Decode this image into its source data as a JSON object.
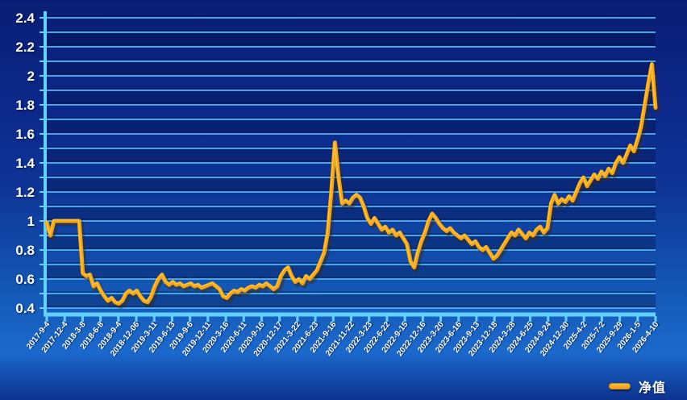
{
  "chart_data": {
    "type": "line",
    "title": "",
    "legend": {
      "label": "净值",
      "position": "bottom-right",
      "swatch_color": "#f2a617"
    },
    "ylim": [
      0.4,
      2.4
    ],
    "y_major_step": 0.2,
    "y_minor_step": 0.1,
    "grid": "on",
    "y_tick_labels": [
      "2.4",
      "2.2",
      "2",
      "1.8",
      "1.6",
      "1.4",
      "1.2",
      "1",
      "0.8",
      "0.6",
      "0.4"
    ],
    "y_tick_values": [
      2.4,
      2.2,
      2.0,
      1.8,
      1.6,
      1.4,
      1.2,
      1.0,
      0.8,
      0.6,
      0.4
    ],
    "x_tick_labels": [
      "2017-9-4",
      "2017-12-4",
      "2018-3-8",
      "2018-6-8",
      "2018-9-4",
      "2018-12-06",
      "2019-3-11",
      "2019-6-13",
      "2019-9-6",
      "2019-12-11",
      "2020-3-16",
      "2020-6-11",
      "2020-9-16",
      "2020-12-17",
      "2021-3-22",
      "2021-6-23",
      "2021-9-16",
      "2021-11-22",
      "2022-3-23",
      "2022-6-22",
      "2022-9-15",
      "2022-12-16",
      "2023-3-20",
      "2023-6-16",
      "2023-9-13",
      "2023-12-18",
      "2024-3-28",
      "2024-6-25",
      "2024-9-24",
      "2024-12-30",
      "2025-4-2",
      "2025-7-2",
      "2025-9-29",
      "2026-1-5",
      "2026-4-10"
    ],
    "series": [
      {
        "name": "净值",
        "color": "#f2a617",
        "x_span": [
          "2017-9-4",
          "2026-4-10"
        ],
        "values": [
          0.99,
          0.9,
          1.0,
          1.0,
          1.0,
          1.0,
          1.0,
          1.0,
          1.0,
          1.0,
          0.64,
          0.62,
          0.63,
          0.55,
          0.57,
          0.52,
          0.48,
          0.45,
          0.47,
          0.44,
          0.43,
          0.45,
          0.5,
          0.52,
          0.5,
          0.52,
          0.48,
          0.45,
          0.44,
          0.48,
          0.55,
          0.6,
          0.63,
          0.58,
          0.56,
          0.58,
          0.56,
          0.57,
          0.55,
          0.56,
          0.57,
          0.55,
          0.56,
          0.54,
          0.55,
          0.56,
          0.57,
          0.55,
          0.53,
          0.48,
          0.47,
          0.5,
          0.52,
          0.51,
          0.53,
          0.52,
          0.54,
          0.55,
          0.54,
          0.56,
          0.55,
          0.57,
          0.55,
          0.53,
          0.55,
          0.62,
          0.66,
          0.68,
          0.62,
          0.58,
          0.6,
          0.57,
          0.62,
          0.6,
          0.63,
          0.66,
          0.72,
          0.78,
          0.92,
          1.2,
          1.54,
          1.3,
          1.12,
          1.14,
          1.12,
          1.16,
          1.18,
          1.16,
          1.1,
          1.02,
          0.98,
          1.02,
          0.98,
          0.94,
          0.96,
          0.92,
          0.94,
          0.9,
          0.92,
          0.88,
          0.84,
          0.72,
          0.68,
          0.78,
          0.86,
          0.92,
          1.0,
          1.05,
          1.02,
          0.98,
          0.95,
          0.93,
          0.95,
          0.92,
          0.9,
          0.88,
          0.9,
          0.87,
          0.84,
          0.86,
          0.82,
          0.8,
          0.82,
          0.78,
          0.74,
          0.76,
          0.8,
          0.84,
          0.88,
          0.92,
          0.9,
          0.94,
          0.91,
          0.88,
          0.92,
          0.9,
          0.94,
          0.96,
          0.92,
          0.95,
          1.12,
          1.18,
          1.12,
          1.15,
          1.13,
          1.17,
          1.14,
          1.2,
          1.26,
          1.3,
          1.24,
          1.28,
          1.32,
          1.29,
          1.34,
          1.31,
          1.36,
          1.33,
          1.4,
          1.44,
          1.4,
          1.46,
          1.52,
          1.48,
          1.56,
          1.65,
          1.8,
          1.95,
          2.08,
          1.78
        ]
      }
    ],
    "colors": {
      "background_top": "#091d74",
      "background_bottom": "#1b69cc",
      "gridline": "#3fa9ec",
      "axis": "#63d2ff",
      "tick_label": "#ffffff",
      "line": "#f2a617",
      "line_shadow": "#7a4a02"
    }
  }
}
